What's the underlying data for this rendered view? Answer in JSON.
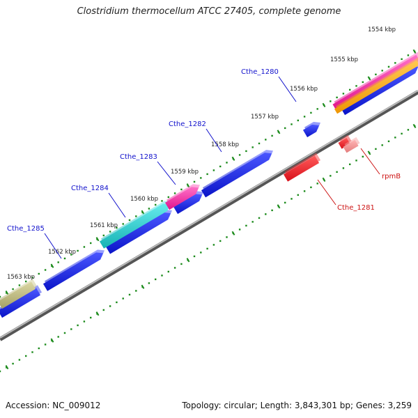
{
  "title": "Clostridium thermocellum ATCC 27405, complete genome",
  "footer": {
    "accession": "Accession: NC_009012",
    "summary": "Topology: circular; Length: 3,843,301 bp; Genes: 3,259"
  },
  "colors": {
    "cds_dark_blue": "#0a14cc",
    "cds_cyan": "#22c4c6",
    "cds_magenta": "#f02a9c",
    "cds_red": "#e8141e",
    "cds_orange": "#f2a00e",
    "cds_olive": "#b4b07a",
    "rrna_pink": "#f09090",
    "backbone": "#888888",
    "tick_green": "#1a8a1a",
    "label_blue": "#1111cc",
    "label_red": "#cc1111"
  },
  "kbp_ticks": [
    {
      "label": "1554 kbp"
    },
    {
      "label": "1555 kbp"
    },
    {
      "label": "1556 kbp"
    },
    {
      "label": "1557 kbp"
    },
    {
      "label": "1558 kbp"
    },
    {
      "label": "1559 kbp"
    },
    {
      "label": "1560 kbp"
    },
    {
      "label": "1561 kbp"
    },
    {
      "label": "1562 kbp"
    },
    {
      "label": "1563 kbp"
    }
  ],
  "gene_labels": [
    {
      "name": "Cthe_1280",
      "strand": "forward"
    },
    {
      "name": "Cthe_1282",
      "strand": "forward"
    },
    {
      "name": "Cthe_1283",
      "strand": "forward"
    },
    {
      "name": "Cthe_1284",
      "strand": "forward"
    },
    {
      "name": "Cthe_1285",
      "strand": "forward"
    },
    {
      "name": "rpmB",
      "strand": "reverse"
    },
    {
      "name": "Cthe_1281",
      "strand": "reverse"
    }
  ]
}
